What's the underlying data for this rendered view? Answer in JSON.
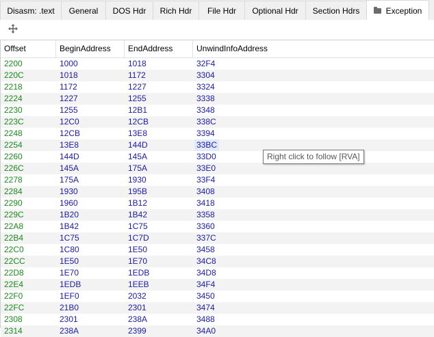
{
  "tabs": [
    {
      "label": "Disasm: .text",
      "width": 90
    },
    {
      "label": "General",
      "width": 66
    },
    {
      "label": "DOS Hdr",
      "width": 70
    },
    {
      "label": "Rich Hdr",
      "width": 68
    },
    {
      "label": "File Hdr",
      "width": 68
    },
    {
      "label": "Optional Hdr",
      "width": 90
    },
    {
      "label": "Section Hdrs",
      "width": 90
    },
    {
      "label": "Exception",
      "width": 92,
      "active": true,
      "icon": "folder-icon"
    }
  ],
  "toolbar": {
    "expand_icon": "move-arrows-icon"
  },
  "table": {
    "columns": [
      "Offset",
      "BeginAddress",
      "EndAddress",
      "UnwindInfoAddress"
    ],
    "rows": [
      [
        "2200",
        "1000",
        "1018",
        "32F4"
      ],
      [
        "220C",
        "1018",
        "1172",
        "3304"
      ],
      [
        "2218",
        "1172",
        "1227",
        "3324"
      ],
      [
        "2224",
        "1227",
        "1255",
        "3338"
      ],
      [
        "2230",
        "1255",
        "12B1",
        "3348"
      ],
      [
        "223C",
        "12C0",
        "12CB",
        "338C"
      ],
      [
        "2248",
        "12CB",
        "13E8",
        "3394"
      ],
      [
        "2254",
        "13E8",
        "144D",
        "33BC"
      ],
      [
        "2260",
        "144D",
        "145A",
        "33D0"
      ],
      [
        "226C",
        "145A",
        "175A",
        "33E0"
      ],
      [
        "2278",
        "175A",
        "1930",
        "33F4"
      ],
      [
        "2284",
        "1930",
        "195B",
        "3408"
      ],
      [
        "2290",
        "1960",
        "1B12",
        "3418"
      ],
      [
        "229C",
        "1B20",
        "1B42",
        "3358"
      ],
      [
        "22A8",
        "1B42",
        "1C75",
        "3360"
      ],
      [
        "22B4",
        "1C75",
        "1C7D",
        "337C"
      ],
      [
        "22C0",
        "1C80",
        "1E50",
        "3458"
      ],
      [
        "22CC",
        "1E50",
        "1E70",
        "34C8"
      ],
      [
        "22D8",
        "1E70",
        "1EDB",
        "34D8"
      ],
      [
        "22E4",
        "1EDB",
        "1EEB",
        "34F4"
      ],
      [
        "22F0",
        "1EF0",
        "2032",
        "3450"
      ],
      [
        "22FC",
        "21B0",
        "2301",
        "3474"
      ],
      [
        "2308",
        "2301",
        "238A",
        "3488"
      ],
      [
        "2314",
        "238A",
        "2399",
        "34A0"
      ]
    ],
    "selected_row": 7,
    "selected_col": 3
  },
  "tooltip": {
    "text": "Right click to follow [RVA]"
  },
  "colors": {
    "offset": "#1b8a1b",
    "address": "#1a1aa8",
    "alt_row": "#f3f3f3"
  }
}
